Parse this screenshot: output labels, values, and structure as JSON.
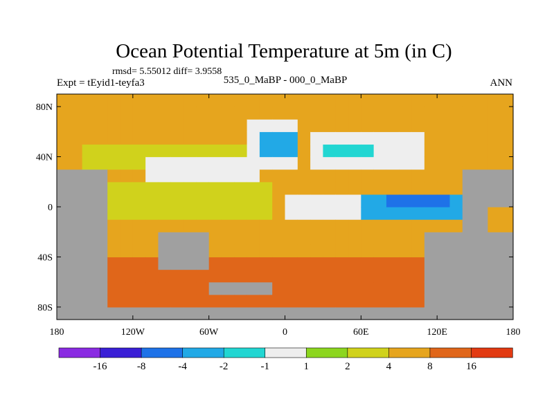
{
  "chart_data": {
    "type": "heatmap",
    "title": "Ocean Potential Temperature at 5m (in C)",
    "stats_label": "rmsd= 5.55012 diff= 3.9558",
    "subtitle_center": "535_0_MaBP - 000_0_MaBP",
    "subtitle_left": "Expt = tEyid1-teyfa3",
    "subtitle_right": "ANN",
    "x_axis": {
      "range": [
        -180,
        180
      ],
      "ticks": [
        {
          "value": -180,
          "label": "180"
        },
        {
          "value": -120,
          "label": "120W"
        },
        {
          "value": -60,
          "label": "60W"
        },
        {
          "value": 0,
          "label": "0"
        },
        {
          "value": 60,
          "label": "60E"
        },
        {
          "value": 120,
          "label": "120E"
        },
        {
          "value": 180,
          "label": "180"
        }
      ]
    },
    "y_axis": {
      "range": [
        -90,
        90
      ],
      "ticks": [
        {
          "value": 80,
          "label": "80N"
        },
        {
          "value": 40,
          "label": "40N"
        },
        {
          "value": 0,
          "label": "0"
        },
        {
          "value": -40,
          "label": "40S"
        },
        {
          "value": -80,
          "label": "80S"
        }
      ]
    },
    "colorbar": {
      "colors": [
        "#8a2be2",
        "#3a1fd6",
        "#1e72e8",
        "#22a9e6",
        "#22d6d2",
        "#eeeeee",
        "#8cd61f",
        "#d0d21c",
        "#e6a51e",
        "#e0661a",
        "#e23a12"
      ],
      "tick_labels": [
        "-16",
        "-8",
        "-4",
        "-2",
        "-1",
        "1",
        "2",
        "4",
        "8",
        "16"
      ]
    },
    "land_color": "#a0a0a0",
    "field": {
      "base_value": 4,
      "regions": [
        {
          "name": "high latitude north",
          "value": 5,
          "lon": [
            -180,
            180
          ],
          "lat": [
            50,
            90
          ]
        },
        {
          "name": "north pacific band",
          "value": 2.5,
          "lon": [
            -160,
            -20
          ],
          "lat": [
            35,
            48
          ]
        },
        {
          "name": "north pacific white",
          "value": 0,
          "lon": [
            -110,
            -20
          ],
          "lat": [
            15,
            40
          ]
        },
        {
          "name": "central pacific yellow",
          "value": 3,
          "lon": [
            -180,
            -15
          ],
          "lat": [
            -10,
            15
          ]
        },
        {
          "name": "north atlantic white",
          "value": 0,
          "lon": [
            -30,
            10
          ],
          "lat": [
            32,
            68
          ]
        },
        {
          "name": "north atlantic cold",
          "value": -3,
          "lon": [
            -20,
            8
          ],
          "lat": [
            40,
            62
          ]
        },
        {
          "name": "eurasia white",
          "value": 0,
          "lon": [
            20,
            110
          ],
          "lat": [
            28,
            56
          ]
        },
        {
          "name": "eurasia cyan",
          "value": -1.5,
          "lon": [
            30,
            70
          ],
          "lat": [
            36,
            50
          ]
        },
        {
          "name": "tropical band white",
          "value": 0,
          "lon": [
            0,
            150
          ],
          "lat": [
            -14,
            12
          ]
        },
        {
          "name": "indian ocean cold",
          "value": -3,
          "lon": [
            60,
            140
          ],
          "lat": [
            -10,
            10
          ]
        },
        {
          "name": "indian ocean core",
          "value": -6,
          "lon": [
            80,
            125
          ],
          "lat": [
            -4,
            5
          ]
        },
        {
          "name": "southern ocean",
          "value": 9,
          "lon": [
            -150,
            110
          ],
          "lat": [
            -82,
            -40
          ]
        },
        {
          "name": "south atlantic",
          "value": 6,
          "lon": [
            -100,
            30
          ],
          "lat": [
            -42,
            -12
          ]
        },
        {
          "name": "south pacific",
          "value": 5,
          "lon": [
            -180,
            -110
          ],
          "lat": [
            -40,
            -10
          ]
        }
      ],
      "land_masks": [
        {
          "lon": [
            -180,
            -140
          ],
          "lat": [
            -90,
            30
          ]
        },
        {
          "lon": [
            -100,
            -60
          ],
          "lat": [
            -45,
            -18
          ]
        },
        {
          "lon": [
            110,
            180
          ],
          "lat": [
            -90,
            -20
          ]
        },
        {
          "lon": [
            140,
            160
          ],
          "lat": [
            -15,
            30
          ]
        },
        {
          "lon": [
            160,
            180
          ],
          "lat": [
            0,
            30
          ]
        },
        {
          "lon": [
            -55,
            -15
          ],
          "lat": [
            -72,
            -60
          ]
        },
        {
          "lon": [
            -180,
            180
          ],
          "lat": [
            -90,
            -82
          ]
        }
      ]
    }
  }
}
